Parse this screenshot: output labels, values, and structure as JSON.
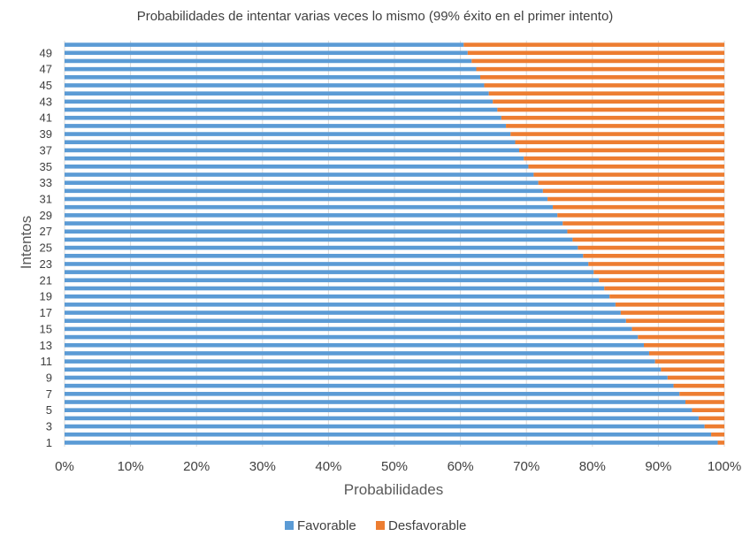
{
  "chart_data": {
    "type": "bar",
    "orientation": "horizontal",
    "stacked": "percent",
    "title": "Probabilidades de intentar varias veces lo mismo (99% éxito en el primer intento)",
    "xlabel": "Probabilidades",
    "ylabel": "Intentos",
    "xlim": [
      0,
      1
    ],
    "x_ticks": [
      "0%",
      "10%",
      "20%",
      "30%",
      "40%",
      "50%",
      "60%",
      "70%",
      "80%",
      "90%",
      "100%"
    ],
    "y_tick_labels": [
      "1",
      "3",
      "5",
      "7",
      "9",
      "11",
      "13",
      "15",
      "17",
      "19",
      "21",
      "23",
      "25",
      "27",
      "29",
      "31",
      "33",
      "35",
      "37",
      "39",
      "41",
      "43",
      "45",
      "47",
      "49"
    ],
    "grid": "vertical",
    "legend_position": "bottom",
    "categories": [
      1,
      2,
      3,
      4,
      5,
      6,
      7,
      8,
      9,
      10,
      11,
      12,
      13,
      14,
      15,
      16,
      17,
      18,
      19,
      20,
      21,
      22,
      23,
      24,
      25,
      26,
      27,
      28,
      29,
      30,
      31,
      32,
      33,
      34,
      35,
      36,
      37,
      38,
      39,
      40,
      41,
      42,
      43,
      44,
      45,
      46,
      47,
      48,
      49,
      50
    ],
    "series": [
      {
        "name": "Favorable",
        "color": "#5B9BD5",
        "values": [
          0.99,
          0.98,
          0.97,
          0.961,
          0.951,
          0.941,
          0.932,
          0.923,
          0.914,
          0.904,
          0.895,
          0.886,
          0.878,
          0.869,
          0.86,
          0.851,
          0.843,
          0.835,
          0.826,
          0.818,
          0.81,
          0.802,
          0.794,
          0.786,
          0.778,
          0.77,
          0.762,
          0.755,
          0.747,
          0.74,
          0.732,
          0.725,
          0.718,
          0.711,
          0.703,
          0.696,
          0.689,
          0.683,
          0.676,
          0.669,
          0.662,
          0.656,
          0.649,
          0.643,
          0.636,
          0.63,
          0.624,
          0.617,
          0.611,
          0.605
        ]
      },
      {
        "name": "Desfavorable",
        "color": "#ED7D31",
        "values": [
          0.01,
          0.02,
          0.03,
          0.039,
          0.049,
          0.059,
          0.068,
          0.077,
          0.086,
          0.096,
          0.105,
          0.114,
          0.122,
          0.131,
          0.14,
          0.149,
          0.157,
          0.165,
          0.174,
          0.182,
          0.19,
          0.198,
          0.206,
          0.214,
          0.222,
          0.23,
          0.238,
          0.245,
          0.253,
          0.26,
          0.268,
          0.275,
          0.282,
          0.289,
          0.297,
          0.304,
          0.311,
          0.317,
          0.324,
          0.331,
          0.338,
          0.344,
          0.351,
          0.357,
          0.364,
          0.37,
          0.376,
          0.383,
          0.389,
          0.395
        ]
      }
    ]
  }
}
